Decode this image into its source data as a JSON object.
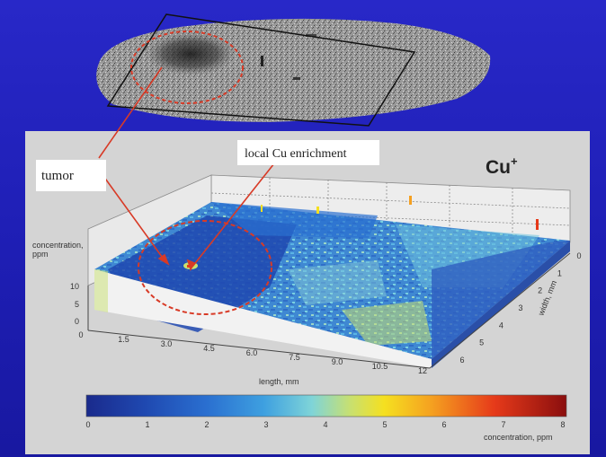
{
  "labels": {
    "tumor": "tumor",
    "enrichment": "local  Cu enrichment",
    "ion": "Cu",
    "ion_sup": "+"
  },
  "axes": {
    "z_label_1": "concentration,",
    "z_label_2": "ppm",
    "z_ticks": [
      "10",
      "5",
      "0"
    ],
    "x_ticks": [
      "0",
      "1.5",
      "3.0",
      "4.5",
      "6.0",
      "7.5",
      "9.0",
      "10.5",
      "12"
    ],
    "x_label": "length, mm",
    "y_ticks": [
      "0",
      "1",
      "2",
      "3",
      "4",
      "5",
      "6"
    ],
    "y_label": "width, mm"
  },
  "colorbar": {
    "ticks": [
      "0",
      "1",
      "2",
      "3",
      "4",
      "5",
      "6",
      "7",
      "8"
    ],
    "label": "concentration, ppm"
  },
  "colors": {
    "background": "#2020c0",
    "panel": "#d4d4d4",
    "annotation": "#d83a26",
    "colormap": [
      "#1a2a8c",
      "#1f48b0",
      "#2a6fd0",
      "#3ea0e0",
      "#7fd4d8",
      "#c8e070",
      "#f5e020",
      "#f5a020",
      "#e63a1a",
      "#8a0e0e"
    ]
  }
}
